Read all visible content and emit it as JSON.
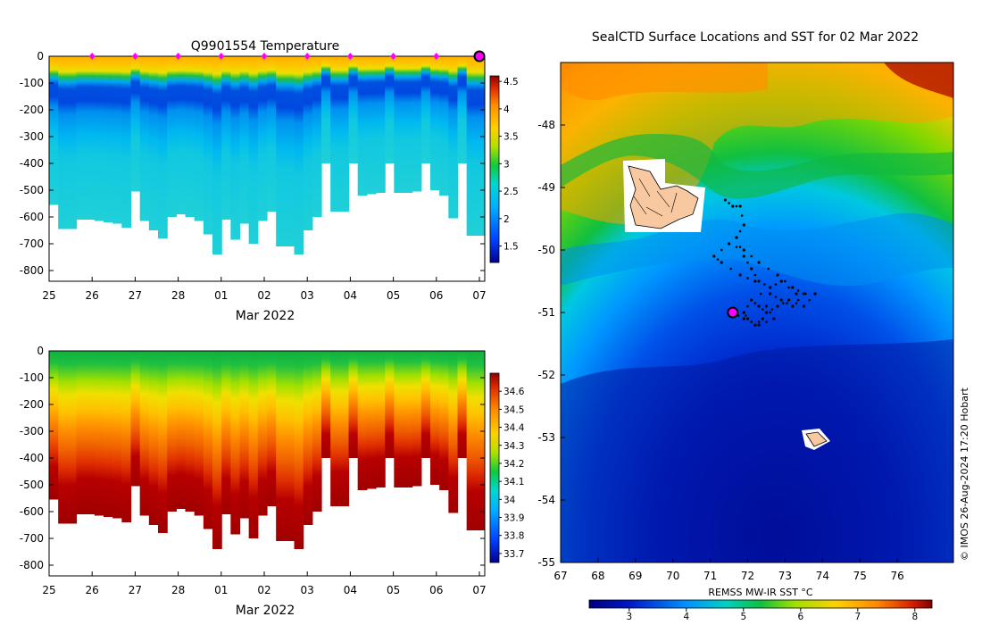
{
  "chart_data": [
    {
      "type": "heatmap",
      "title": "Q9901554  Temperature",
      "xlabel": "Mar 2022",
      "ylabel": "",
      "x_ticks": [
        "25",
        "26",
        "27",
        "28",
        "01",
        "02",
        "03",
        "04",
        "05",
        "06",
        "07"
      ],
      "y_ticks": [
        "0",
        "-100",
        "-200",
        "-300",
        "-400",
        "-500",
        "-600",
        "-700",
        "-800"
      ],
      "ylim": [
        -840,
        0
      ],
      "colorbar": {
        "min": 1.2,
        "max": 4.6,
        "ticks": [
          "1.5",
          "2",
          "2.5",
          "3",
          "3.5",
          "4",
          "4.5"
        ]
      },
      "profile_depths": [
        -555,
        -645,
        -645,
        -610,
        -610,
        -615,
        -620,
        -625,
        -640,
        -505,
        -615,
        -650,
        -680,
        -600,
        -590,
        -600,
        -615,
        -665,
        -740,
        -610,
        -685,
        -625,
        -700,
        -615,
        -580,
        -710,
        -710,
        -740,
        -650,
        -600,
        -400,
        -580,
        -580,
        -400,
        -520,
        -515,
        -510,
        -400,
        -510,
        -510,
        -505,
        -400,
        -500,
        -520,
        -605,
        -400,
        -670,
        -670
      ],
      "marker_days": [
        "26",
        "27",
        "28",
        "01",
        "02",
        "03",
        "04",
        "05",
        "06"
      ]
    },
    {
      "type": "heatmap",
      "title": "",
      "xlabel": "Mar 2022",
      "ylabel": "",
      "x_ticks": [
        "25",
        "26",
        "27",
        "28",
        "01",
        "02",
        "03",
        "04",
        "05",
        "06",
        "07"
      ],
      "y_ticks": [
        "0",
        "-100",
        "-200",
        "-300",
        "-400",
        "-500",
        "-600",
        "-700",
        "-800"
      ],
      "ylim": [
        -840,
        0
      ],
      "colorbar": {
        "min": 33.65,
        "max": 34.7,
        "ticks": [
          "33.7",
          "33.8",
          "33.9",
          "34",
          "34.1",
          "34.2",
          "34.3",
          "34.4",
          "34.5",
          "34.6"
        ]
      }
    },
    {
      "type": "heatmap",
      "title": "SealCTD Surface Locations and SST for 02 Mar 2022",
      "xlabel": "",
      "ylabel": "",
      "x_ticks": [
        "67",
        "68",
        "69",
        "70",
        "71",
        "72",
        "73",
        "74",
        "75",
        "76"
      ],
      "y_ticks": [
        "-48",
        "-49",
        "-50",
        "-51",
        "-52",
        "-53",
        "-54",
        "-55"
      ],
      "xlim": [
        67,
        77.5
      ],
      "ylim": [
        -55,
        -47
      ],
      "colorbar": {
        "label": "REMSS MW-IR SST °C",
        "min": 2.3,
        "max": 8.3,
        "ticks": [
          "3",
          "4",
          "5",
          "6",
          "7",
          "8"
        ]
      },
      "current_position": {
        "lon": 71.6,
        "lat": -51.0
      },
      "track": [
        [
          71.4,
          -49.2
        ],
        [
          71.6,
          -49.3
        ],
        [
          71.8,
          -49.3
        ],
        [
          71.9,
          -49.6
        ],
        [
          71.7,
          -49.8
        ],
        [
          71.9,
          -50.1
        ],
        [
          72.1,
          -50.3
        ],
        [
          72.3,
          -50.5
        ],
        [
          72.6,
          -50.6
        ],
        [
          72.9,
          -50.5
        ],
        [
          73.3,
          -50.7
        ],
        [
          73.8,
          -50.7
        ],
        [
          73.5,
          -50.9
        ],
        [
          73.1,
          -50.8
        ],
        [
          72.8,
          -50.9
        ],
        [
          72.5,
          -51.0
        ],
        [
          72.3,
          -50.9
        ],
        [
          72.1,
          -50.8
        ],
        [
          71.9,
          -51.0
        ],
        [
          72.0,
          -51.1
        ],
        [
          72.2,
          -51.2
        ],
        [
          72.4,
          -51.1
        ],
        [
          72.6,
          -50.7
        ],
        [
          72.9,
          -50.8
        ],
        [
          73.2,
          -50.9
        ],
        [
          73.5,
          -50.7
        ],
        [
          73.2,
          -50.6
        ],
        [
          72.8,
          -50.4
        ],
        [
          72.3,
          -50.2
        ],
        [
          71.9,
          -50.0
        ],
        [
          71.5,
          -49.9
        ],
        [
          71.1,
          -50.1
        ],
        [
          71.3,
          -50.2
        ],
        [
          71.8,
          -50.4
        ],
        [
          72.2,
          -50.5
        ],
        [
          72.5,
          -50.9
        ],
        [
          72.7,
          -51.1
        ],
        [
          72.3,
          -51.2
        ],
        [
          71.9,
          -51.1
        ],
        [
          71.6,
          -51.0
        ]
      ]
    }
  ],
  "watermark": "© IMOS 26-Aug-2024 17:20 Hobart"
}
